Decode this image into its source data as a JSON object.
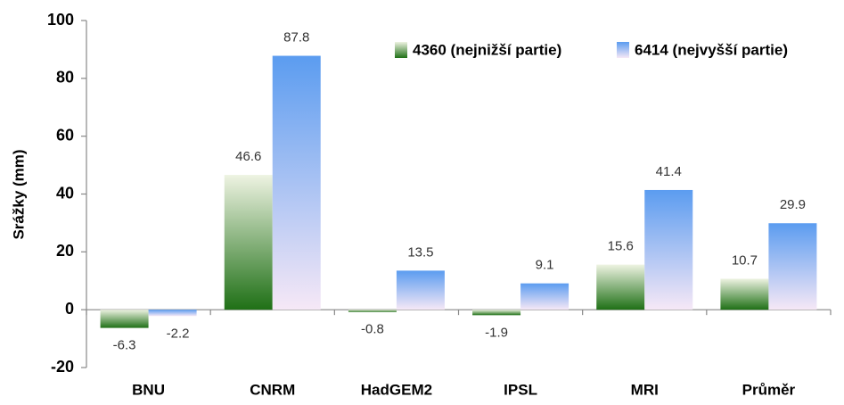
{
  "chart_data": {
    "type": "bar",
    "categories": [
      "BNU",
      "CNRM",
      "HadGEM2",
      "IPSL",
      "MRI",
      "Průměr"
    ],
    "series": [
      {
        "name": "4360 (nejnižší partie)",
        "color": "#237a1c",
        "values": [
          -6.3,
          46.6,
          -0.8,
          -1.9,
          15.6,
          10.7
        ]
      },
      {
        "name": "6414 (nejvyšší partie)",
        "color": "#5b9cf0",
        "values": [
          -2.2,
          87.8,
          13.5,
          9.1,
          41.4,
          29.9
        ]
      }
    ],
    "y_label": "Srážky (mm)",
    "ylim": [
      -20,
      100
    ],
    "yticks": [
      -20,
      0,
      20,
      40,
      60,
      80,
      100
    ],
    "grid": false,
    "legend": "top-right"
  }
}
